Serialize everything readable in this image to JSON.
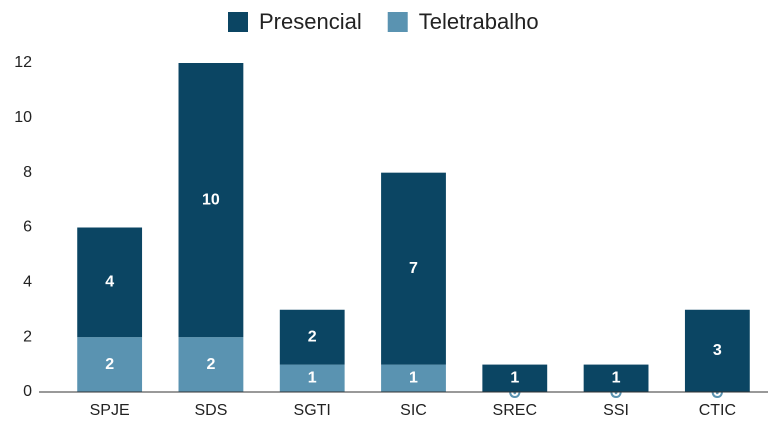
{
  "chart_data": {
    "type": "stacked_bar",
    "categories": [
      "SPJE",
      "SDS",
      "SGTI",
      "SIC",
      "SREC",
      "SSI",
      "CTIC"
    ],
    "series": [
      {
        "name": "Teletrabalho",
        "color": "#5a93b1",
        "values": [
          2,
          2,
          1,
          1,
          0,
          0,
          0
        ]
      },
      {
        "name": "Presencial",
        "color": "#0b4563",
        "values": [
          4,
          10,
          2,
          7,
          1,
          1,
          3
        ]
      }
    ],
    "ylim": [
      0,
      12
    ],
    "yticks": [
      0,
      2,
      4,
      6,
      8,
      10,
      12
    ],
    "grid": false,
    "legend": "top"
  }
}
